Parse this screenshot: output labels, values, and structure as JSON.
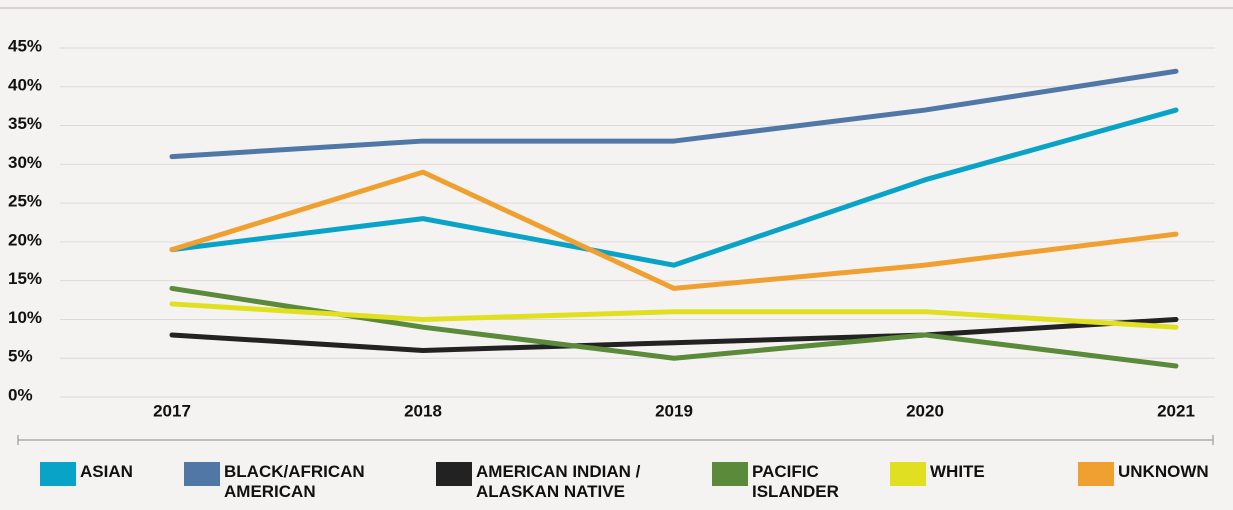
{
  "chart_data": {
    "type": "line",
    "categories": [
      "2017",
      "2018",
      "2019",
      "2020",
      "2021"
    ],
    "series": [
      {
        "name": "ASIAN",
        "color": "#0aa3c8",
        "values": [
          19,
          23,
          17,
          28,
          37
        ]
      },
      {
        "name": "BLACK/AFRICAN AMERICAN",
        "color": "#5177a6",
        "values": [
          31,
          33,
          33,
          37,
          42
        ]
      },
      {
        "name": "AMERICAN INDIAN / ALASKAN NATIVE",
        "color": "#222222",
        "values": [
          8,
          6,
          7,
          8,
          10
        ]
      },
      {
        "name": "PACIFIC ISLANDER",
        "color": "#5a8a3a",
        "values": [
          14,
          9,
          5,
          8,
          4
        ]
      },
      {
        "name": "WHITE",
        "color": "#e0e020",
        "values": [
          12,
          10,
          11,
          11,
          9
        ]
      },
      {
        "name": "UNKNOWN",
        "color": "#f0a030",
        "values": [
          19,
          29,
          14,
          17,
          21
        ]
      }
    ],
    "ylim": [
      0,
      45
    ],
    "yticks": [
      {
        "value": 0,
        "label": "0%"
      },
      {
        "value": 5,
        "label": "5%"
      },
      {
        "value": 10,
        "label": "10%"
      },
      {
        "value": 15,
        "label": "15%"
      },
      {
        "value": 20,
        "label": "20%"
      },
      {
        "value": 25,
        "label": "25%"
      },
      {
        "value": 30,
        "label": "30%"
      },
      {
        "value": 35,
        "label": "35%"
      },
      {
        "value": 40,
        "label": "40%"
      },
      {
        "value": 45,
        "label": "45%"
      }
    ],
    "grid": true
  }
}
